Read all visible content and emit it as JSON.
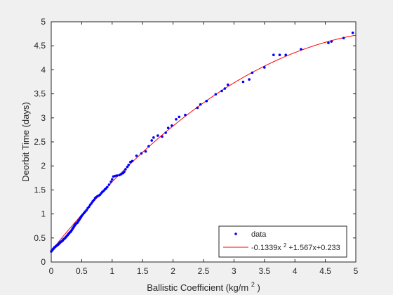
{
  "chart_data": {
    "type": "scatter",
    "title": "",
    "xlabel": "Ballistic Coefficient (kg/m",
    "xlabel_superscript": "2",
    "xlabel_suffix": ")",
    "ylabel": "Deorbit Time (days)",
    "xlim": [
      0,
      5
    ],
    "ylim": [
      0,
      5
    ],
    "xticks": [
      0,
      0.5,
      1,
      1.5,
      2,
      2.5,
      3,
      3.5,
      4,
      4.5,
      5
    ],
    "xtick_labels": [
      "0",
      "0.5",
      "1",
      "1.5",
      "2",
      "2.5",
      "3",
      "3.5",
      "4",
      "4.5",
      "5"
    ],
    "yticks": [
      0,
      0.5,
      1,
      1.5,
      2,
      2.5,
      3,
      3.5,
      4,
      4.5,
      5
    ],
    "ytick_labels": [
      "0",
      "0.5",
      "1",
      "1.5",
      "2",
      "2.5",
      "3",
      "3.5",
      "4",
      "4.5",
      "5"
    ],
    "grid": false,
    "legend": {
      "position": "bottom-right",
      "entries": [
        {
          "label": "data",
          "color": "#0000ff",
          "marker": "point"
        },
        {
          "label_parts": [
            "-0.1339x",
            "2",
            "+1.567x+0.233"
          ],
          "color": "#ff0000",
          "marker": "line"
        }
      ]
    },
    "colors": {
      "data": "#0000ff",
      "fit": "#ff0000"
    },
    "series": [
      {
        "name": "data",
        "type": "scatter",
        "points": [
          [
            0.0,
            0.22
          ],
          [
            0.01,
            0.24
          ],
          [
            0.02,
            0.25
          ],
          [
            0.03,
            0.27
          ],
          [
            0.04,
            0.28
          ],
          [
            0.05,
            0.3
          ],
          [
            0.06,
            0.31
          ],
          [
            0.07,
            0.32
          ],
          [
            0.08,
            0.33
          ],
          [
            0.09,
            0.34
          ],
          [
            0.1,
            0.35
          ],
          [
            0.11,
            0.36
          ],
          [
            0.12,
            0.37
          ],
          [
            0.13,
            0.38
          ],
          [
            0.14,
            0.4
          ],
          [
            0.15,
            0.41
          ],
          [
            0.16,
            0.42
          ],
          [
            0.17,
            0.43
          ],
          [
            0.18,
            0.44
          ],
          [
            0.19,
            0.45
          ],
          [
            0.2,
            0.47
          ],
          [
            0.21,
            0.48
          ],
          [
            0.22,
            0.49
          ],
          [
            0.23,
            0.5
          ],
          [
            0.24,
            0.52
          ],
          [
            0.25,
            0.53
          ],
          [
            0.26,
            0.55
          ],
          [
            0.27,
            0.56
          ],
          [
            0.28,
            0.58
          ],
          [
            0.29,
            0.59
          ],
          [
            0.3,
            0.61
          ],
          [
            0.31,
            0.62
          ],
          [
            0.32,
            0.63
          ],
          [
            0.33,
            0.65
          ],
          [
            0.34,
            0.67
          ],
          [
            0.35,
            0.69
          ],
          [
            0.36,
            0.71
          ],
          [
            0.37,
            0.73
          ],
          [
            0.38,
            0.75
          ],
          [
            0.39,
            0.77
          ],
          [
            0.4,
            0.79
          ],
          [
            0.41,
            0.8
          ],
          [
            0.42,
            0.81
          ],
          [
            0.43,
            0.82
          ],
          [
            0.44,
            0.84
          ],
          [
            0.45,
            0.86
          ],
          [
            0.46,
            0.88
          ],
          [
            0.47,
            0.9
          ],
          [
            0.48,
            0.92
          ],
          [
            0.49,
            0.94
          ],
          [
            0.5,
            0.96
          ],
          [
            0.52,
            0.99
          ],
          [
            0.54,
            1.02
          ],
          [
            0.56,
            1.05
          ],
          [
            0.58,
            1.08
          ],
          [
            0.6,
            1.12
          ],
          [
            0.62,
            1.15
          ],
          [
            0.64,
            1.19
          ],
          [
            0.66,
            1.22
          ],
          [
            0.68,
            1.26
          ],
          [
            0.7,
            1.29
          ],
          [
            0.72,
            1.33
          ],
          [
            0.74,
            1.35
          ],
          [
            0.76,
            1.37
          ],
          [
            0.78,
            1.38
          ],
          [
            0.8,
            1.4
          ],
          [
            0.82,
            1.43
          ],
          [
            0.84,
            1.46
          ],
          [
            0.86,
            1.48
          ],
          [
            0.88,
            1.51
          ],
          [
            0.9,
            1.53
          ],
          [
            0.92,
            1.56
          ],
          [
            0.95,
            1.61
          ],
          [
            0.98,
            1.67
          ],
          [
            1.0,
            1.72
          ],
          [
            1.02,
            1.78
          ],
          [
            1.05,
            1.79
          ],
          [
            1.08,
            1.8
          ],
          [
            1.12,
            1.81
          ],
          [
            1.15,
            1.83
          ],
          [
            1.18,
            1.85
          ],
          [
            1.2,
            1.88
          ],
          [
            1.22,
            1.93
          ],
          [
            1.25,
            1.98
          ],
          [
            1.27,
            2.02
          ],
          [
            1.3,
            2.08
          ],
          [
            1.33,
            2.1
          ],
          [
            1.4,
            2.21
          ],
          [
            1.48,
            2.26
          ],
          [
            1.55,
            2.3
          ],
          [
            1.6,
            2.41
          ],
          [
            1.65,
            2.53
          ],
          [
            1.68,
            2.59
          ],
          [
            1.75,
            2.63
          ],
          [
            1.82,
            2.61
          ],
          [
            1.88,
            2.69
          ],
          [
            1.92,
            2.79
          ],
          [
            1.98,
            2.84
          ],
          [
            2.05,
            2.97
          ],
          [
            2.1,
            3.02
          ],
          [
            2.2,
            3.06
          ],
          [
            2.4,
            3.21
          ],
          [
            2.45,
            3.28
          ],
          [
            2.55,
            3.35
          ],
          [
            2.7,
            3.49
          ],
          [
            2.8,
            3.56
          ],
          [
            2.85,
            3.61
          ],
          [
            2.9,
            3.69
          ],
          [
            3.15,
            3.75
          ],
          [
            3.25,
            3.8
          ],
          [
            3.3,
            3.94
          ],
          [
            3.5,
            4.05
          ],
          [
            3.65,
            4.31
          ],
          [
            3.75,
            4.31
          ],
          [
            3.85,
            4.31
          ],
          [
            4.1,
            4.43
          ],
          [
            4.55,
            4.56
          ],
          [
            4.6,
            4.59
          ],
          [
            4.8,
            4.66
          ],
          [
            4.95,
            4.77
          ]
        ]
      },
      {
        "name": "-0.1339x²+1.567x+0.233",
        "type": "line",
        "coefficients": [
          -0.1339,
          1.567,
          0.233
        ],
        "x_range": [
          0,
          5
        ]
      }
    ]
  }
}
